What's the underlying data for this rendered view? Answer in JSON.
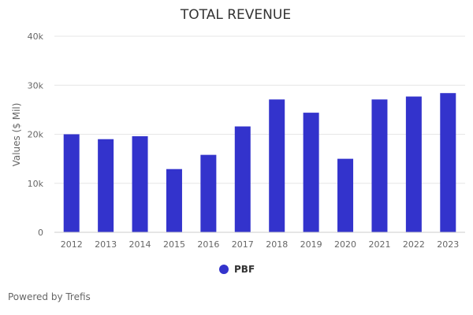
{
  "chart_data": {
    "type": "bar",
    "title": "TOTAL REVENUE",
    "xlabel": "",
    "ylabel": "Values ($ Mil)",
    "categories": [
      "2012",
      "2013",
      "2014",
      "2015",
      "2016",
      "2017",
      "2018",
      "2019",
      "2020",
      "2021",
      "2022",
      "2023"
    ],
    "series": [
      {
        "name": "PBF",
        "values": [
          20000,
          19000,
          19600,
          12900,
          15800,
          21600,
          27100,
          24400,
          15000,
          27100,
          27700,
          28400
        ]
      }
    ],
    "ylim": [
      0,
      40000
    ],
    "yticks": [
      0,
      10000,
      20000,
      30000,
      40000
    ],
    "ytick_labels": [
      "0",
      "10k",
      "20k",
      "30k",
      "40k"
    ],
    "grid": true,
    "legend_position": "bottom-center"
  },
  "colors": {
    "bar": "#3333cc",
    "grid": "#e6e6e6",
    "axis": "#cccccc"
  },
  "footer": {
    "credit": "Powered by Trefis"
  }
}
